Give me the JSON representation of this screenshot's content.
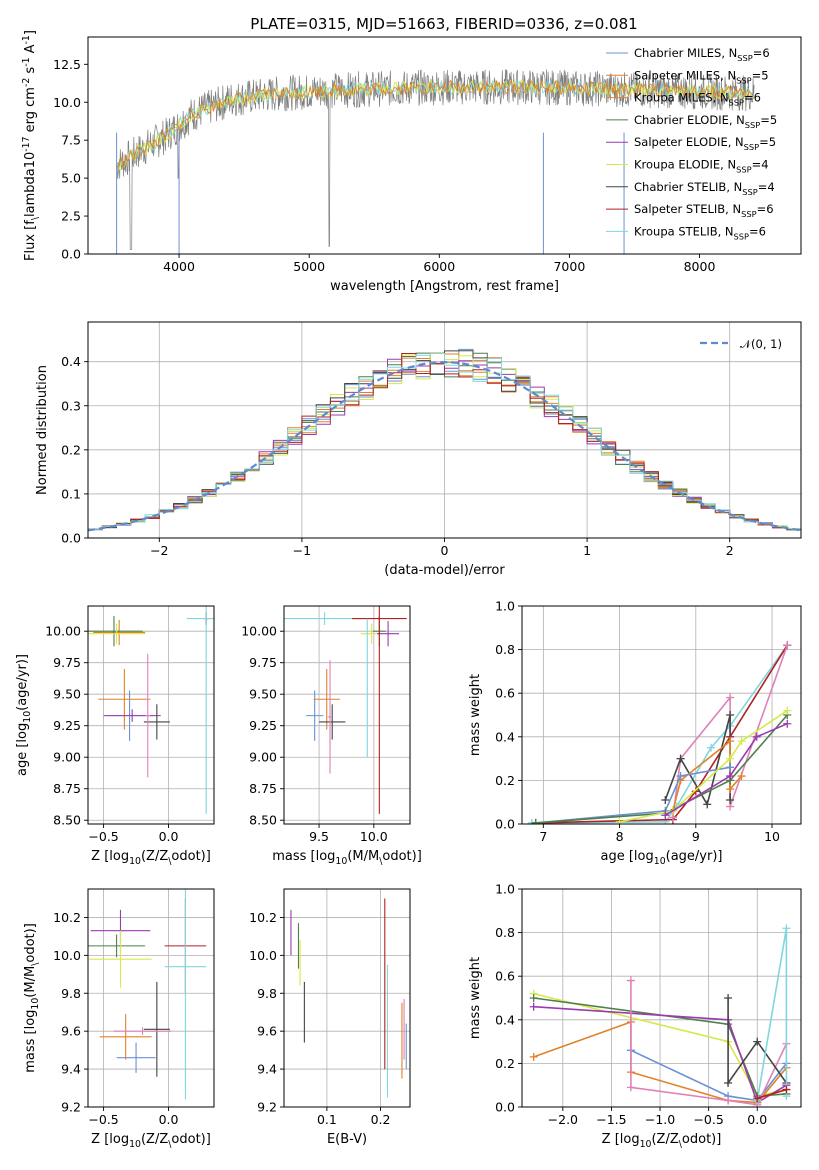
{
  "figure": {
    "title": "PLATE=0315, MJD=51663, FIBERID=0336, z=0.081"
  },
  "colors": {
    "Chabrier MILES": "#6a91d6",
    "Salpeter MILES": "#e0822a",
    "Kroupa MILES": "#e0822a",
    "Chabrier ELODIE": "#4f7f4a",
    "Salpeter ELODIE": "#9a3bb0",
    "Kroupa ELODIE": "#d7e84a",
    "Chabrier STELIB": "#444444",
    "Salpeter STELIB": "#b22020",
    "Kroupa STELIB": "#7fd6e0",
    "pink": "#e080b8",
    "gauss": "#5b8bd0",
    "grid": "#b0b0b0"
  },
  "chart_data": [
    {
      "id": "spectrum",
      "type": "line",
      "title": "PLATE=0315, MJD=51663, FIBERID=0336, z=0.081",
      "xlabel": "wavelength [Angstrom, rest frame]",
      "ylabel": "Flux [f$_\\lambda$10$^{-17}$ erg cm$^{-2}$ s$^{-1}$ A$^{-1}$]",
      "xlim": [
        3300,
        8780
      ],
      "ylim": [
        0,
        14.3
      ],
      "xticks": [
        4000,
        5000,
        6000,
        7000,
        8000
      ],
      "yticks": [
        0.0,
        2.5,
        5.0,
        7.5,
        10.0,
        12.5
      ],
      "xtick_labels": [
        "4000",
        "5000",
        "6000",
        "7000",
        "8000"
      ],
      "ytick_labels": [
        "0.0",
        "2.5",
        "5.0",
        "7.5",
        "10.0",
        "12.5"
      ],
      "grid": false,
      "legend_position": "right",
      "data": {
        "x": [
          3550,
          3700,
          3900,
          4100,
          4400,
          4800,
          5200,
          5600,
          6000,
          6400,
          6800,
          7200,
          7600,
          8000,
          8400
        ],
        "y": [
          6.0,
          6.8,
          7.8,
          9.2,
          10.2,
          10.6,
          10.8,
          10.9,
          11.0,
          11.0,
          11.0,
          10.9,
          10.8,
          10.7,
          10.6
        ]
      },
      "legend": [
        "Chabrier MILES, N$_{SSP}$=6",
        "Salpeter MILES, N$_{SSP}$=5",
        "Kroupa MILES, N$_{SSP}$=6",
        "Chabrier ELODIE, N$_{SSP}$=5",
        "Salpeter ELODIE, N$_{SSP}$=5",
        "Kroupa ELODIE, N$_{SSP}$=4",
        "Chabrier STELIB, N$_{SSP}$=4",
        "Salpeter STELIB, N$_{SSP}$=6",
        "Kroupa STELIB, N$_{SSP}$=6"
      ]
    },
    {
      "id": "residuals",
      "type": "line",
      "title": "",
      "xlabel": "(data-model)/error",
      "ylabel": "Normed distribution",
      "xlim": [
        -2.5,
        2.5
      ],
      "ylim": [
        0,
        0.49
      ],
      "xticks": [
        -2,
        -1,
        0,
        1,
        2
      ],
      "yticks": [
        0.0,
        0.1,
        0.2,
        0.3,
        0.4
      ],
      "xtick_labels": [
        "−2",
        "−1",
        "0",
        "1",
        "2"
      ],
      "ytick_labels": [
        "0.0",
        "0.1",
        "0.2",
        "0.3",
        "0.4"
      ],
      "grid": true,
      "legend_position": "top-right",
      "legend": [
        "$\\mathcal{N}(0,1)$"
      ]
    },
    {
      "id": "age-z",
      "type": "scatter",
      "xlabel": "Z [log$_{10}$(Z/Z$_\\odot$)]",
      "ylabel": "age  [log$_{10}$(age/yr)]",
      "xlim": [
        -0.62,
        0.35
      ],
      "ylim": [
        8.47,
        10.2
      ],
      "xticks": [
        -0.5,
        0.0
      ],
      "yticks": [
        8.5,
        8.75,
        9.0,
        9.25,
        9.5,
        9.75,
        10.0
      ],
      "xtick_labels": [
        "−0.5",
        "0.0"
      ],
      "ytick_labels": [
        "8.50",
        "8.75",
        "9.00",
        "9.25",
        "9.50",
        "9.75",
        "10.00"
      ],
      "grid": true,
      "points": [
        {
          "series": "Chabrier MILES",
          "x": -0.3,
          "y": 9.33,
          "xerr": 0.19,
          "yerr": 0.2
        },
        {
          "series": "Salpeter MILES",
          "x": -0.34,
          "y": 9.46,
          "xerr": 0.2,
          "yerr": 0.24
        },
        {
          "series": "Kroupa MILES",
          "x": -0.38,
          "y": 9.99,
          "xerr": 0.2,
          "yerr": 0.1
        },
        {
          "series": "Chabrier ELODIE",
          "x": -0.42,
          "y": 10.0,
          "xerr": 0.22,
          "yerr": 0.12
        },
        {
          "series": "Salpeter ELODIE",
          "x": -0.28,
          "y": 9.33,
          "xerr": 0.22,
          "yerr": 0.05
        },
        {
          "series": "Kroupa ELODIE",
          "x": -0.4,
          "y": 9.98,
          "xerr": 0.22,
          "yerr": 0.08
        },
        {
          "series": "Chabrier STELIB",
          "x": -0.09,
          "y": 9.28,
          "xerr": 0.1,
          "yerr": 0.14
        },
        {
          "series": "Salpeter STELIB",
          "x": 0.29,
          "y": 10.1,
          "xerr": 0.02,
          "yerr": 0.05
        },
        {
          "series": "Kroupa STELIB",
          "x": 0.29,
          "y": 10.1,
          "xerr": 0.15,
          "yerr": 1.55
        },
        {
          "series": "pink",
          "x": -0.16,
          "y": 9.33,
          "xerr": 0.02,
          "yerr": 0.49
        }
      ]
    },
    {
      "id": "age-mass",
      "type": "scatter",
      "xlabel": "mass [log$_{10}$(M/M$_\\odot$)]",
      "ylabel": "",
      "xlim": [
        9.18,
        10.33
      ],
      "ylim": [
        8.47,
        10.2
      ],
      "xticks": [
        9.5,
        10.0
      ],
      "yticks": [
        8.5,
        8.75,
        9.0,
        9.25,
        9.5,
        9.75,
        10.0
      ],
      "xtick_labels": [
        "9.5",
        "10.0"
      ],
      "ytick_labels": [
        "8.50",
        "8.75",
        "9.00",
        "9.25",
        "9.50",
        "9.75",
        "10.00"
      ],
      "grid": true,
      "points": [
        {
          "series": "Chabrier MILES",
          "x": 9.46,
          "y": 9.33,
          "xerr": 0.08,
          "yerr": 0.2
        },
        {
          "series": "Salpeter MILES",
          "x": 9.57,
          "y": 9.46,
          "xerr": 0.12,
          "yerr": 0.24
        },
        {
          "series": "Kroupa STELIB",
          "x": 9.55,
          "y": 10.1,
          "xerr": 0.4,
          "yerr": 0.05
        },
        {
          "series": "Chabrier STELIB",
          "x": 9.62,
          "y": 9.28,
          "xerr": 0.12,
          "yerr": 0.14
        },
        {
          "series": "Kroupa ELODIE",
          "x": 9.98,
          "y": 9.98,
          "xerr": 0.1,
          "yerr": 0.08
        },
        {
          "series": "Chabrier ELODIE",
          "x": 10.05,
          "y": 10.0,
          "xerr": 0.06,
          "yerr": 0.12
        },
        {
          "series": "Salpeter ELODIE",
          "x": 10.13,
          "y": 9.98,
          "xerr": 0.1,
          "yerr": 0.1
        },
        {
          "series": "Salpeter STELIB",
          "x": 10.05,
          "y": 10.1,
          "xerr": 0.25,
          "yerr": 1.55
        },
        {
          "series": "Kroupa STELIB",
          "x": 9.94,
          "y": 9.55,
          "xerr": 0.005,
          "yerr": 0.55
        },
        {
          "series": "pink",
          "x": 9.6,
          "y": 9.32,
          "xerr": 0.02,
          "yerr": 0.45
        }
      ]
    },
    {
      "id": "weight-age",
      "type": "line",
      "xlabel": "age  [log$_{10}$(age/yr)]",
      "ylabel": "mass weight",
      "xlim": [
        6.72,
        10.38
      ],
      "ylim": [
        0,
        1.0
      ],
      "xticks": [
        7,
        8,
        9,
        10
      ],
      "yticks": [
        0.0,
        0.2,
        0.4,
        0.6,
        0.8,
        1.0
      ],
      "xtick_labels": [
        "7",
        "8",
        "9",
        "10"
      ],
      "ytick_labels": [
        "0.0",
        "0.2",
        "0.4",
        "0.6",
        "0.8",
        "1.0"
      ],
      "grid": true,
      "series": [
        {
          "series": "Kroupa STELIB",
          "x": [
            6.85,
            8.6,
            8.75,
            9.2,
            9.45,
            10.2
          ],
          "y": [
            0.005,
            0.01,
            0.08,
            0.35,
            0.45,
            0.82
          ]
        },
        {
          "series": "Salpeter STELIB",
          "x": [
            6.9,
            8.7,
            9.0,
            9.45,
            10.2
          ],
          "y": [
            0.005,
            0.02,
            0.15,
            0.4,
            0.82
          ]
        },
        {
          "series": "pink",
          "x": [
            8.7,
            8.8,
            9.45,
            9.45,
            10.2
          ],
          "y": [
            0.03,
            0.3,
            0.58,
            0.08,
            0.82
          ]
        },
        {
          "series": "Chabrier STELIB",
          "x": [
            8.6,
            8.8,
            9.15,
            9.45,
            9.45
          ],
          "y": [
            0.11,
            0.3,
            0.09,
            0.5,
            0.11
          ]
        },
        {
          "series": "Salpeter MILES",
          "x": [
            8.7,
            8.8,
            9.45,
            9.45,
            9.6
          ],
          "y": [
            0.06,
            0.2,
            0.38,
            0.16,
            0.22
          ]
        },
        {
          "series": "Chabrier MILES",
          "x": [
            6.9,
            8.6,
            8.8,
            9.45
          ],
          "y": [
            0.005,
            0.06,
            0.22,
            0.26
          ]
        },
        {
          "series": "Chabrier ELODIE",
          "x": [
            6.9,
            8.6,
            9.45,
            10.2
          ],
          "y": [
            0.005,
            0.05,
            0.2,
            0.5
          ]
        },
        {
          "series": "Kroupa ELODIE",
          "x": [
            8.0,
            8.7,
            9.45,
            9.6,
            10.2
          ],
          "y": [
            0.01,
            0.06,
            0.3,
            0.38,
            0.52
          ]
        },
        {
          "series": "Salpeter ELODIE",
          "x": [
            8.6,
            9.45,
            9.8,
            10.2
          ],
          "y": [
            0.04,
            0.22,
            0.4,
            0.46
          ]
        }
      ]
    },
    {
      "id": "mass-z",
      "type": "scatter",
      "xlabel": "Z [log$_{10}$(Z/Z$_\\odot$)]",
      "ylabel": "mass [log$_{10}$(M/M$_\\odot$)]",
      "xlim": [
        -0.62,
        0.35
      ],
      "ylim": [
        9.2,
        10.35
      ],
      "xticks": [
        -0.5,
        0.0
      ],
      "yticks": [
        9.2,
        9.4,
        9.6,
        9.8,
        10.0,
        10.2
      ],
      "xtick_labels": [
        "−0.5",
        "0.0"
      ],
      "ytick_labels": [
        "9.2",
        "9.4",
        "9.6",
        "9.8",
        "10.0",
        "10.2"
      ],
      "grid": true,
      "points": [
        {
          "series": "Chabrier MILES",
          "x": -0.25,
          "y": 9.46,
          "xerr": 0.15,
          "yerr": 0.08
        },
        {
          "series": "Salpeter MILES",
          "x": -0.33,
          "y": 9.57,
          "xerr": 0.2,
          "yerr": 0.12
        },
        {
          "series": "Salpeter ELODIE",
          "x": -0.37,
          "y": 10.13,
          "xerr": 0.23,
          "yerr": 0.11
        },
        {
          "series": "Chabrier ELODIE",
          "x": -0.4,
          "y": 10.05,
          "xerr": 0.22,
          "yerr": 0.06
        },
        {
          "series": "Kroupa ELODIE",
          "x": -0.37,
          "y": 9.98,
          "xerr": 0.24,
          "yerr": 0.15
        },
        {
          "series": "Chabrier STELIB",
          "x": -0.09,
          "y": 9.61,
          "xerr": 0.1,
          "yerr": 0.25
        },
        {
          "series": "Salpeter STELIB",
          "x": 0.13,
          "y": 10.05,
          "xerr": 0.16,
          "yerr": 0.25
        },
        {
          "series": "Kroupa STELIB",
          "x": 0.13,
          "y": 9.94,
          "xerr": 0.16,
          "yerr": 0.7
        },
        {
          "series": "pink",
          "x": -0.2,
          "y": 9.6,
          "xerr": 0.22,
          "yerr": 0.02
        }
      ]
    },
    {
      "id": "mass-ebv",
      "type": "scatter",
      "xlabel": "E(B-V)",
      "ylabel": "",
      "xlim": [
        0.02,
        0.255
      ],
      "ylim": [
        9.2,
        10.35
      ],
      "xticks": [
        0.1,
        0.2
      ],
      "yticks": [
        9.2,
        9.4,
        9.6,
        9.8,
        10.0,
        10.2
      ],
      "xtick_labels": [
        "0.1",
        "0.2"
      ],
      "ytick_labels": [
        "9.2",
        "9.4",
        "9.6",
        "9.8",
        "10.0",
        "10.2"
      ],
      "grid": true,
      "points": [
        {
          "series": "Salpeter ELODIE",
          "x": 0.033,
          "y": 10.12,
          "xerr": 0.0,
          "yerr": 0.12
        },
        {
          "series": "Chabrier ELODIE",
          "x": 0.047,
          "y": 10.05,
          "xerr": 0.0,
          "yerr": 0.12
        },
        {
          "series": "Kroupa ELODIE",
          "x": 0.05,
          "y": 9.96,
          "xerr": 0.0,
          "yerr": 0.12
        },
        {
          "series": "Chabrier STELIB",
          "x": 0.058,
          "y": 9.7,
          "xerr": 0.0,
          "yerr": 0.16
        },
        {
          "series": "Salpeter STELIB",
          "x": 0.208,
          "y": 9.85,
          "xerr": 0.0,
          "yerr": 0.45
        },
        {
          "series": "Kroupa STELIB",
          "x": 0.213,
          "y": 9.6,
          "xerr": 0.0,
          "yerr": 0.35
        },
        {
          "series": "Salpeter MILES",
          "x": 0.24,
          "y": 9.55,
          "xerr": 0.0,
          "yerr": 0.2
        },
        {
          "series": "pink",
          "x": 0.244,
          "y": 9.61,
          "xerr": 0.0,
          "yerr": 0.16
        },
        {
          "series": "Chabrier MILES",
          "x": 0.248,
          "y": 9.52,
          "xerr": 0.0,
          "yerr": 0.12
        }
      ]
    },
    {
      "id": "weight-z",
      "type": "line",
      "xlabel": "Z [log$_{10}$(Z/Z$_\\odot$)]",
      "ylabel": "mass weight",
      "xlim": [
        -2.42,
        0.45
      ],
      "ylim": [
        0,
        1.0
      ],
      "xticks": [
        -2.0,
        -1.5,
        -1.0,
        -0.5,
        0.0
      ],
      "yticks": [
        0.0,
        0.2,
        0.4,
        0.6,
        0.8,
        1.0
      ],
      "xtick_labels": [
        "−2.0",
        "−1.5",
        "−1.0",
        "−0.5",
        "0.0"
      ],
      "ytick_labels": [
        "0.0",
        "0.2",
        "0.4",
        "0.6",
        "0.8",
        "1.0"
      ],
      "grid": true,
      "series": [
        {
          "series": "Kroupa ELODIE",
          "x": [
            -2.3,
            -0.3,
            0.0,
            0.3
          ],
          "y": [
            0.52,
            0.3,
            0.05,
            0.08
          ]
        },
        {
          "series": "Chabrier ELODIE",
          "x": [
            -2.3,
            -0.3,
            0.0,
            0.3
          ],
          "y": [
            0.5,
            0.38,
            0.05,
            0.06
          ]
        },
        {
          "series": "Salpeter ELODIE",
          "x": [
            -2.3,
            -0.3,
            0.0,
            0.3
          ],
          "y": [
            0.46,
            0.4,
            0.02,
            0.1
          ]
        },
        {
          "series": "Salpeter MILES",
          "x": [
            -2.3,
            -1.3,
            -1.3,
            -0.3,
            0.0,
            0.3
          ],
          "y": [
            0.23,
            0.39,
            0.16,
            0.03,
            0.02,
            0.18
          ]
        },
        {
          "series": "Chabrier MILES",
          "x": [
            -1.3,
            -0.3,
            0.0,
            0.3
          ],
          "y": [
            0.26,
            0.05,
            0.03,
            0.2
          ]
        },
        {
          "series": "pink",
          "x": [
            -1.3,
            -1.3,
            -0.3,
            0.0,
            0.3
          ],
          "y": [
            0.58,
            0.09,
            0.03,
            0.01,
            0.29
          ]
        },
        {
          "series": "Chabrier STELIB",
          "x": [
            -0.3,
            -0.3,
            0.0,
            0.3
          ],
          "y": [
            0.5,
            0.11,
            0.3,
            0.11
          ]
        },
        {
          "series": "Kroupa STELIB",
          "x": [
            0.0,
            0.3,
            0.3
          ],
          "y": [
            0.03,
            0.82,
            0.05
          ]
        },
        {
          "series": "Salpeter STELIB",
          "x": [
            0.0,
            0.3
          ],
          "y": [
            0.04,
            0.08
          ]
        }
      ]
    }
  ]
}
